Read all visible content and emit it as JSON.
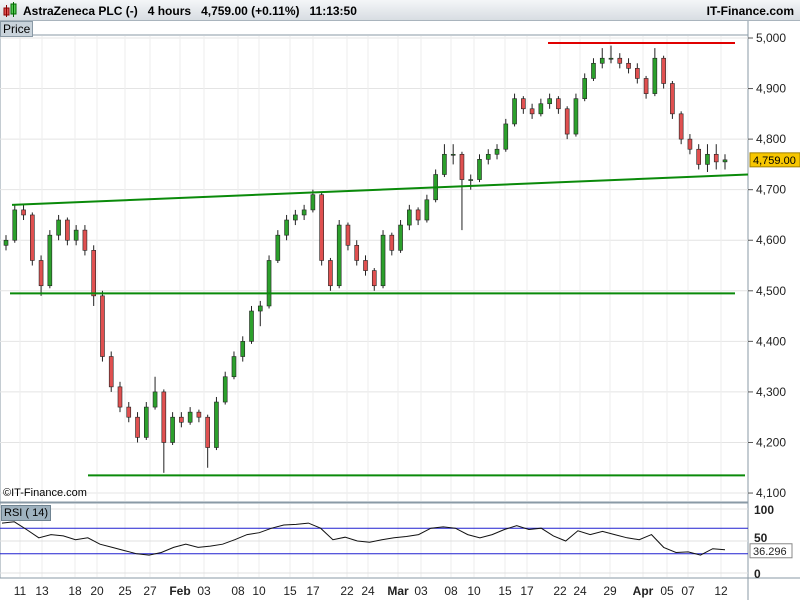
{
  "header": {
    "instrument": "AstraZeneca PLC (-)",
    "interval": "4 hours",
    "price": "4,759.00 (+0.11%)",
    "time": "11:13:50",
    "brand": "IT-Finance.com"
  },
  "panels": {
    "price_label": "Price",
    "rsi_label": "RSI ( 14)",
    "copyright": "©IT-Finance.com"
  },
  "colors": {
    "up": "#2ca02c",
    "down": "#e05050",
    "trend": "#0a8a0a",
    "resistance": "#e00000",
    "rsi_band": "#2020d0",
    "last_price_bg": "#f7c600"
  },
  "chart_data": [
    {
      "type": "candlestick",
      "title": "",
      "ylim": [
        4100,
        5000
      ],
      "yticks": [
        "4,100",
        "4,200",
        "4,300",
        "4,400",
        "4,500",
        "4,600",
        "4,700",
        "4,800",
        "4,900",
        "5,000"
      ],
      "last_price": "4,759.00",
      "last_value": 4759,
      "xticks": [
        "11",
        "13",
        "18",
        "20",
        "25",
        "27",
        "Feb",
        "03",
        "08",
        "10",
        "15",
        "17",
        "22",
        "24",
        "Mar",
        "03",
        "08",
        "10",
        "15",
        "17",
        "22",
        "24",
        "29",
        "Apr",
        "05",
        "07",
        "12"
      ],
      "ohlc": [
        [
          4590,
          4610,
          4580,
          4600
        ],
        [
          4600,
          4670,
          4595,
          4660
        ],
        [
          4660,
          4670,
          4640,
          4650
        ],
        [
          4650,
          4655,
          4550,
          4560
        ],
        [
          4560,
          4570,
          4490,
          4510
        ],
        [
          4510,
          4620,
          4505,
          4610
        ],
        [
          4610,
          4650,
          4600,
          4640
        ],
        [
          4640,
          4645,
          4590,
          4600
        ],
        [
          4600,
          4630,
          4590,
          4620
        ],
        [
          4620,
          4630,
          4570,
          4580
        ],
        [
          4580,
          4590,
          4470,
          4490
        ],
        [
          4490,
          4500,
          4360,
          4370
        ],
        [
          4370,
          4380,
          4300,
          4310
        ],
        [
          4310,
          4320,
          4260,
          4270
        ],
        [
          4270,
          4280,
          4240,
          4250
        ],
        [
          4250,
          4260,
          4200,
          4210
        ],
        [
          4210,
          4280,
          4205,
          4270
        ],
        [
          4270,
          4330,
          4265,
          4300
        ],
        [
          4300,
          4305,
          4140,
          4200
        ],
        [
          4200,
          4260,
          4195,
          4250
        ],
        [
          4250,
          4260,
          4230,
          4240
        ],
        [
          4240,
          4270,
          4235,
          4260
        ],
        [
          4260,
          4265,
          4240,
          4250
        ],
        [
          4250,
          4255,
          4150,
          4190
        ],
        [
          4190,
          4290,
          4185,
          4280
        ],
        [
          4280,
          4340,
          4275,
          4330
        ],
        [
          4330,
          4380,
          4325,
          4370
        ],
        [
          4370,
          4410,
          4360,
          4400
        ],
        [
          4400,
          4470,
          4395,
          4460
        ],
        [
          4460,
          4480,
          4430,
          4470
        ],
        [
          4470,
          4570,
          4465,
          4560
        ],
        [
          4560,
          4620,
          4555,
          4610
        ],
        [
          4610,
          4650,
          4600,
          4640
        ],
        [
          4640,
          4660,
          4630,
          4650
        ],
        [
          4650,
          4670,
          4640,
          4660
        ],
        [
          4660,
          4700,
          4655,
          4690
        ],
        [
          4690,
          4695,
          4550,
          4560
        ],
        [
          4560,
          4565,
          4500,
          4510
        ],
        [
          4510,
          4640,
          4505,
          4630
        ],
        [
          4630,
          4635,
          4580,
          4590
        ],
        [
          4590,
          4600,
          4550,
          4560
        ],
        [
          4560,
          4570,
          4530,
          4540
        ],
        [
          4540,
          4545,
          4500,
          4510
        ],
        [
          4510,
          4620,
          4505,
          4610
        ],
        [
          4610,
          4615,
          4570,
          4580
        ],
        [
          4580,
          4640,
          4575,
          4630
        ],
        [
          4630,
          4670,
          4620,
          4660
        ],
        [
          4660,
          4665,
          4630,
          4640
        ],
        [
          4640,
          4690,
          4635,
          4680
        ],
        [
          4680,
          4740,
          4675,
          4730
        ],
        [
          4730,
          4790,
          4725,
          4770
        ],
        [
          4770,
          4790,
          4750,
          4770
        ],
        [
          4770,
          4775,
          4620,
          4720
        ],
        [
          4720,
          4730,
          4700,
          4720
        ],
        [
          4720,
          4770,
          4715,
          4760
        ],
        [
          4760,
          4780,
          4750,
          4770
        ],
        [
          4770,
          4790,
          4760,
          4780
        ],
        [
          4780,
          4840,
          4775,
          4830
        ],
        [
          4830,
          4890,
          4825,
          4880
        ],
        [
          4880,
          4885,
          4850,
          4860
        ],
        [
          4860,
          4870,
          4840,
          4850
        ],
        [
          4850,
          4880,
          4845,
          4870
        ],
        [
          4870,
          4890,
          4860,
          4880
        ],
        [
          4880,
          4885,
          4850,
          4860
        ],
        [
          4860,
          4865,
          4800,
          4810
        ],
        [
          4810,
          4890,
          4805,
          4880
        ],
        [
          4880,
          4930,
          4875,
          4920
        ],
        [
          4920,
          4960,
          4915,
          4950
        ],
        [
          4950,
          4980,
          4940,
          4960
        ],
        [
          4960,
          4985,
          4950,
          4960
        ],
        [
          4960,
          4970,
          4940,
          4950
        ],
        [
          4950,
          4960,
          4930,
          4940
        ],
        [
          4940,
          4950,
          4910,
          4920
        ],
        [
          4920,
          4925,
          4880,
          4890
        ],
        [
          4890,
          4980,
          4885,
          4960
        ],
        [
          4960,
          4965,
          4900,
          4910
        ],
        [
          4910,
          4915,
          4840,
          4850
        ],
        [
          4850,
          4855,
          4790,
          4800
        ],
        [
          4800,
          4810,
          4770,
          4780
        ],
        [
          4780,
          4790,
          4740,
          4750
        ],
        [
          4750,
          4790,
          4735,
          4770
        ],
        [
          4770,
          4790,
          4740,
          4755
        ],
        [
          4755,
          4770,
          4740,
          4759
        ]
      ],
      "lines": [
        {
          "kind": "resistance",
          "color": "red",
          "y": [
            4990,
            4990
          ]
        },
        {
          "kind": "trendline",
          "color": "green",
          "y": [
            4670,
            4730
          ]
        },
        {
          "kind": "support",
          "color": "green",
          "y": [
            4495,
            4495
          ]
        },
        {
          "kind": "support",
          "color": "green",
          "y": [
            4135,
            4135
          ]
        }
      ]
    },
    {
      "type": "line",
      "title": "RSI ( 14)",
      "ylim": [
        0,
        100
      ],
      "yticks": [
        "0",
        "50",
        "100"
      ],
      "bands": [
        30,
        70
      ],
      "last_value": "36.296",
      "values": [
        78,
        80,
        68,
        55,
        60,
        58,
        52,
        55,
        45,
        40,
        35,
        30,
        28,
        32,
        40,
        45,
        40,
        42,
        45,
        52,
        60,
        63,
        70,
        75,
        76,
        78,
        70,
        52,
        56,
        50,
        48,
        52,
        55,
        57,
        60,
        70,
        72,
        70,
        60,
        55,
        60,
        68,
        74,
        68,
        70,
        58,
        50,
        66,
        60,
        65,
        60,
        55,
        52,
        60,
        40,
        32,
        33,
        28,
        38,
        36.296
      ]
    }
  ]
}
